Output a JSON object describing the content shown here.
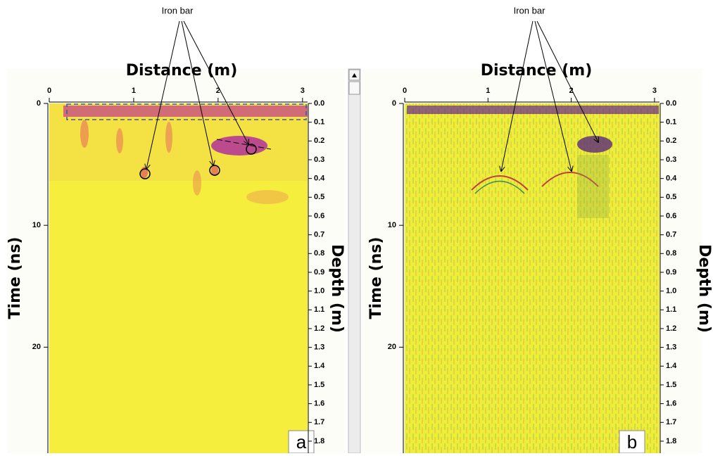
{
  "panels": [
    {
      "label": "a",
      "annotation": "Iron bar",
      "x_axis": {
        "title": "Distance (m)",
        "lim": [
          0,
          3.06
        ],
        "ticks": [
          0,
          1,
          2,
          3
        ]
      },
      "y_axis": {
        "title": "Time (ns)",
        "lim": [
          0,
          28.7
        ],
        "ticks": [
          0,
          10,
          20
        ]
      },
      "y2_axis": {
        "title": "Depth (m)",
        "lim": [
          0,
          1.864
        ],
        "ticks": [
          {
            "value": 0,
            "label": "0.0"
          },
          0.1,
          0.2,
          0.3,
          0.4,
          0.5,
          0.6,
          0.7,
          0.8,
          0.9,
          {
            "value": 1,
            "label": "1.0"
          },
          1.1,
          1.2,
          1.3,
          1.4,
          1.5,
          1.6,
          1.7,
          1.8
        ]
      }
    },
    {
      "label": "b",
      "annotation": "Iron bar",
      "x_axis": {
        "title": "Distance (m)",
        "lim": [
          0,
          3.06
        ],
        "ticks": [
          0,
          1,
          2,
          3
        ]
      },
      "y_axis": {
        "title": "Time (ns)",
        "lim": [
          0,
          28.7
        ],
        "ticks": [
          0,
          10,
          20
        ]
      },
      "y2_axis": {
        "title": "Depth (m)",
        "lim": [
          0,
          1.864
        ],
        "ticks": [
          {
            "value": 0,
            "label": "0.0"
          },
          0.1,
          0.2,
          0.3,
          0.4,
          0.5,
          0.6,
          0.7,
          0.8,
          0.9,
          {
            "value": 1,
            "label": "1.0"
          },
          1.1,
          1.2,
          1.3,
          1.4,
          1.5,
          1.6,
          1.7,
          1.8
        ]
      }
    }
  ]
}
